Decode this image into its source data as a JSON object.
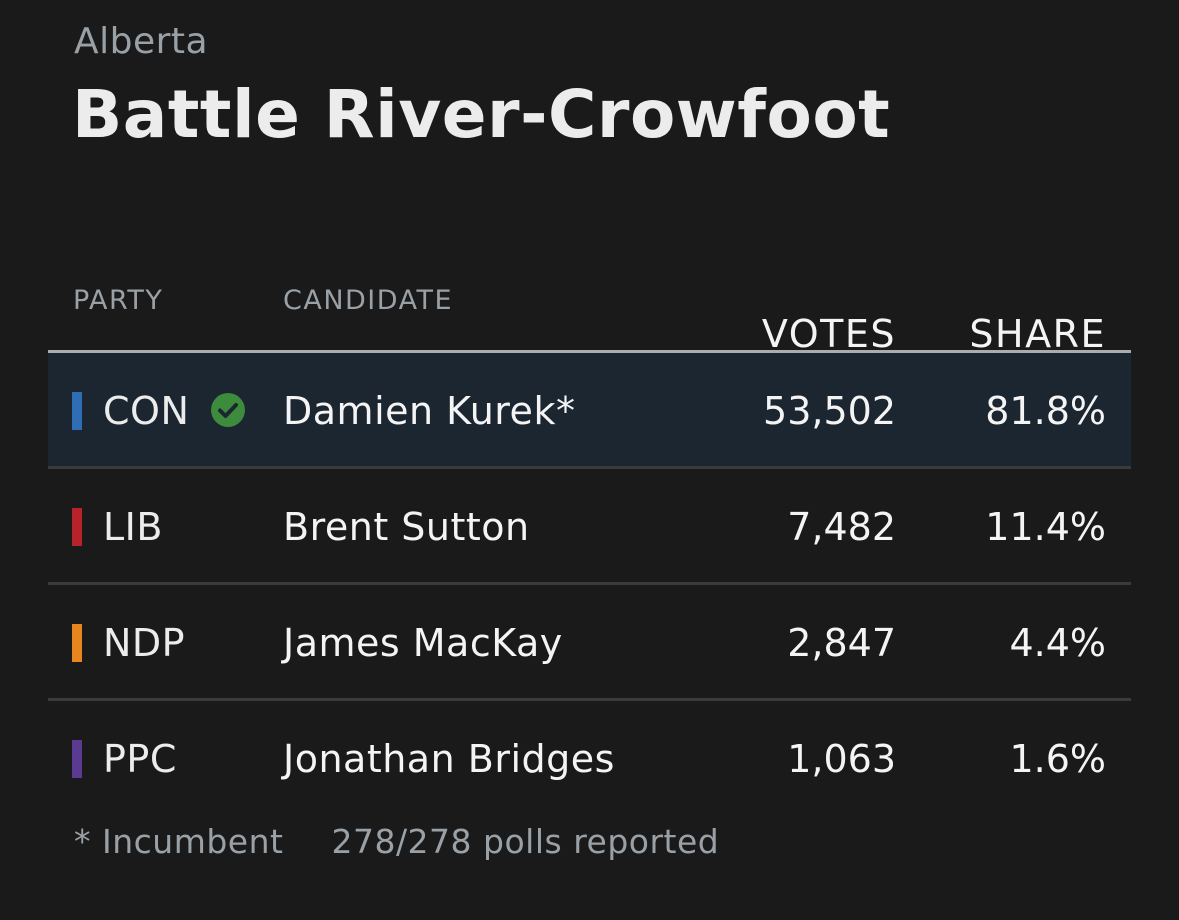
{
  "header": {
    "province": "Alberta",
    "riding": "Battle River-Crowfoot"
  },
  "columns": {
    "party": "PARTY",
    "candidate": "CANDIDATE",
    "votes": "VOTES",
    "share": "SHARE"
  },
  "results": [
    {
      "party": "CON",
      "color": "#2f6eb5",
      "candidate": "Damien Kurek*",
      "votes": "53,502",
      "share": "81.8%",
      "winner": true
    },
    {
      "party": "LIB",
      "color": "#b8232b",
      "candidate": "Brent Sutton",
      "votes": "7,482",
      "share": "11.4%",
      "winner": false
    },
    {
      "party": "NDP",
      "color": "#e8851e",
      "candidate": "James MacKay",
      "votes": "2,847",
      "share": "4.4%",
      "winner": false
    },
    {
      "party": "PPC",
      "color": "#5b3b91",
      "candidate": "Jonathan Bridges",
      "votes": "1,063",
      "share": "1.6%",
      "winner": false
    }
  ],
  "winner_icon": "check-circle-icon",
  "winner_icon_color": "#3d8b3d",
  "footer": {
    "incumbent_note": "* Incumbent",
    "polls": "278/278 polls reported"
  }
}
